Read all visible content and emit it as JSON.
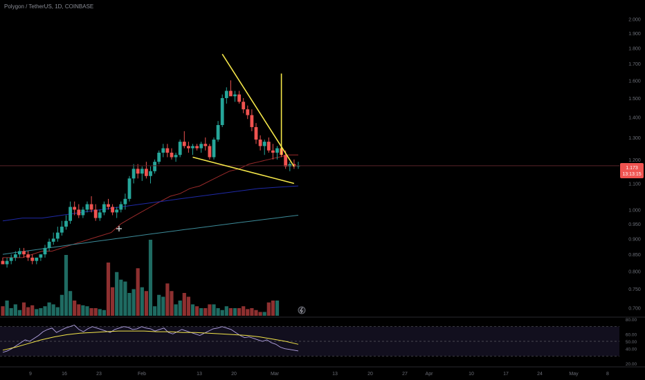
{
  "header": {
    "title": "Polygon / TetherUS, 1D, COINBASE"
  },
  "price_badge": {
    "price": "1.173",
    "countdown": "13:13:15"
  },
  "colors": {
    "up": "#26a69a",
    "down": "#ef5350",
    "up_dim": "#1f6b62",
    "down_dim": "#8e3030",
    "pattern": "#f5e74a",
    "ma_fast": "#9c2b2b",
    "ma_mid": "#1f2aa8",
    "ma_slow": "#3d8c9a",
    "rsi": "#b6a6e6",
    "rsi_ma": "#f5e74a",
    "badge": "#ef5350"
  },
  "icons": {
    "chart_marker": "lightning-icon",
    "event_marker": "plus-icon"
  },
  "chart_data": {
    "type": "candlestick",
    "title": "Polygon / TetherUS, 1D, COINBASE",
    "ylim": [
      0.68,
      2.1
    ],
    "y_ticks": [
      "2.000",
      "1.900",
      "1.800",
      "1.700",
      "1.600",
      "1.500",
      "1.400",
      "1.300",
      "1.200",
      "1.100",
      "1.000",
      "0.950",
      "0.900",
      "0.850",
      "0.800",
      "0.750",
      "0.700"
    ],
    "x_ticks": [
      "9",
      "16",
      "23",
      "Feb",
      "13",
      "20",
      "Mar",
      "13",
      "20",
      "27",
      "Apr",
      "10",
      "17",
      "24",
      "May",
      "8"
    ],
    "candles_ohlc": [
      [
        0.83,
        0.84,
        0.82,
        0.82
      ],
      [
        0.82,
        0.84,
        0.81,
        0.83
      ],
      [
        0.83,
        0.85,
        0.82,
        0.84
      ],
      [
        0.84,
        0.86,
        0.83,
        0.85
      ],
      [
        0.85,
        0.87,
        0.84,
        0.86
      ],
      [
        0.86,
        0.87,
        0.84,
        0.85
      ],
      [
        0.85,
        0.86,
        0.83,
        0.84
      ],
      [
        0.84,
        0.85,
        0.82,
        0.83
      ],
      [
        0.83,
        0.84,
        0.82,
        0.84
      ],
      [
        0.84,
        0.85,
        0.83,
        0.85
      ],
      [
        0.85,
        0.88,
        0.84,
        0.87
      ],
      [
        0.87,
        0.9,
        0.86,
        0.89
      ],
      [
        0.89,
        0.92,
        0.88,
        0.9
      ],
      [
        0.9,
        0.94,
        0.89,
        0.92
      ],
      [
        0.92,
        0.96,
        0.91,
        0.94
      ],
      [
        0.94,
        0.98,
        0.93,
        0.96
      ],
      [
        0.96,
        1.03,
        0.95,
        1.01
      ],
      [
        1.01,
        1.03,
        0.98,
        1.0
      ],
      [
        1.0,
        1.02,
        0.97,
        0.98
      ],
      [
        0.98,
        1.01,
        0.97,
        1.0
      ],
      [
        1.0,
        1.03,
        0.99,
        1.02
      ],
      [
        1.02,
        1.05,
        0.99,
        1.0
      ],
      [
        1.0,
        1.02,
        0.96,
        0.97
      ],
      [
        0.97,
        1.0,
        0.96,
        0.99
      ],
      [
        0.99,
        1.03,
        0.98,
        1.02
      ],
      [
        1.02,
        1.04,
        1.0,
        1.01
      ],
      [
        1.01,
        1.02,
        0.98,
        0.99
      ],
      [
        0.99,
        1.01,
        0.97,
        1.0
      ],
      [
        1.0,
        1.03,
        0.99,
        1.02
      ],
      [
        1.02,
        1.06,
        1.0,
        1.04
      ],
      [
        1.04,
        1.13,
        1.03,
        1.12
      ],
      [
        1.12,
        1.18,
        1.1,
        1.16
      ],
      [
        1.16,
        1.18,
        1.12,
        1.14
      ],
      [
        1.14,
        1.17,
        1.11,
        1.16
      ],
      [
        1.16,
        1.19,
        1.12,
        1.13
      ],
      [
        1.13,
        1.17,
        1.1,
        1.15
      ],
      [
        1.15,
        1.2,
        1.14,
        1.19
      ],
      [
        1.19,
        1.24,
        1.18,
        1.23
      ],
      [
        1.23,
        1.27,
        1.21,
        1.25
      ],
      [
        1.25,
        1.27,
        1.21,
        1.23
      ],
      [
        1.23,
        1.25,
        1.2,
        1.21
      ],
      [
        1.21,
        1.23,
        1.19,
        1.22
      ],
      [
        1.22,
        1.29,
        1.21,
        1.28
      ],
      [
        1.28,
        1.33,
        1.25,
        1.26
      ],
      [
        1.26,
        1.28,
        1.23,
        1.25
      ],
      [
        1.25,
        1.27,
        1.22,
        1.26
      ],
      [
        1.26,
        1.27,
        1.24,
        1.25
      ],
      [
        1.25,
        1.28,
        1.23,
        1.27
      ],
      [
        1.27,
        1.3,
        1.24,
        1.26
      ],
      [
        1.26,
        1.27,
        1.2,
        1.21
      ],
      [
        1.21,
        1.3,
        1.2,
        1.29
      ],
      [
        1.29,
        1.38,
        1.28,
        1.36
      ],
      [
        1.36,
        1.52,
        1.35,
        1.5
      ],
      [
        1.5,
        1.56,
        1.47,
        1.54
      ],
      [
        1.54,
        1.6,
        1.52,
        1.51
      ],
      [
        1.51,
        1.54,
        1.48,
        1.52
      ],
      [
        1.52,
        1.54,
        1.47,
        1.48
      ],
      [
        1.48,
        1.5,
        1.42,
        1.44
      ],
      [
        1.44,
        1.46,
        1.39,
        1.41
      ],
      [
        1.41,
        1.44,
        1.33,
        1.35
      ],
      [
        1.35,
        1.37,
        1.27,
        1.29
      ],
      [
        1.29,
        1.31,
        1.24,
        1.26
      ],
      [
        1.26,
        1.29,
        1.22,
        1.28
      ],
      [
        1.28,
        1.3,
        1.23,
        1.24
      ],
      [
        1.24,
        1.27,
        1.2,
        1.23
      ],
      [
        1.23,
        1.26,
        1.2,
        1.25
      ],
      [
        1.25,
        1.27,
        1.21,
        1.22
      ],
      [
        1.22,
        1.24,
        1.16,
        1.17
      ],
      [
        1.17,
        1.19,
        1.15,
        1.18
      ],
      [
        1.18,
        1.2,
        1.16,
        1.17
      ],
      [
        1.17,
        1.19,
        1.16,
        1.173
      ]
    ],
    "volume": [
      10,
      16,
      8,
      12,
      6,
      14,
      9,
      11,
      7,
      8,
      10,
      14,
      12,
      9,
      22,
      64,
      26,
      16,
      12,
      11,
      10,
      8,
      8,
      7,
      6,
      56,
      30,
      46,
      38,
      36,
      24,
      28,
      50,
      30,
      26,
      80,
      10,
      22,
      20,
      34,
      26,
      12,
      16,
      24,
      20,
      12,
      10,
      8,
      8,
      12,
      12,
      8,
      6,
      10,
      8,
      8,
      8,
      10,
      7,
      8,
      6,
      4,
      4,
      14,
      16,
      16
    ],
    "ma_fast": [
      0.84,
      0.84,
      0.84,
      0.85,
      0.86,
      0.86,
      0.87,
      0.88,
      0.89,
      0.9,
      0.91,
      0.92,
      0.95,
      0.97,
      0.99,
      1.01,
      1.03,
      1.05,
      1.06,
      1.08,
      1.09,
      1.11,
      1.13,
      1.15,
      1.16,
      1.18,
      1.19,
      1.2,
      1.21,
      1.22,
      1.22
    ],
    "ma_mid": [
      0.96,
      0.97,
      0.97,
      0.98,
      0.99,
      1.0,
      1.01,
      1.02,
      1.03,
      1.04,
      1.05,
      1.06,
      1.07,
      1.08,
      1.085,
      1.09
    ],
    "ma_slow": [
      0.85,
      0.855,
      0.86,
      0.865,
      0.87,
      0.875,
      0.88,
      0.885,
      0.89,
      0.895,
      0.9,
      0.905,
      0.91,
      0.915,
      0.92,
      0.925,
      0.93,
      0.935,
      0.94,
      0.945,
      0.95,
      0.955,
      0.96,
      0.965,
      0.97,
      0.975,
      0.98
    ],
    "pattern_lines": [
      {
        "from": [
          52,
          1.76
        ],
        "to": [
          69,
          1.17
        ]
      },
      {
        "from": [
          45,
          1.21
        ],
        "to": [
          69,
          1.1
        ]
      },
      {
        "from": [
          66,
          1.64
        ],
        "to": [
          66,
          1.22
        ]
      }
    ],
    "current_price": 1.173,
    "rsi": {
      "ylim": [
        20,
        80
      ],
      "ticks": [
        "80.00",
        "60.00",
        "50.00",
        "40.00",
        "20.00"
      ],
      "levels": [
        70,
        50,
        30
      ],
      "values": [
        35,
        37,
        40,
        44,
        48,
        52,
        50,
        54,
        58,
        63,
        66,
        68,
        62,
        65,
        68,
        70,
        72,
        66,
        63,
        67,
        70,
        68,
        66,
        64,
        62,
        66,
        68,
        70,
        69,
        66,
        67,
        70,
        68,
        67,
        64,
        66,
        68,
        62,
        60,
        63,
        66,
        64,
        62,
        60,
        58,
        61,
        64,
        67,
        68,
        70,
        68,
        66,
        62,
        58,
        55,
        56,
        54,
        52,
        50,
        52,
        48,
        46,
        42,
        40,
        39,
        38,
        37
      ],
      "ma_values": [
        38,
        42,
        47,
        52,
        56,
        59,
        61,
        62,
        63,
        64,
        64,
        64,
        63,
        63,
        62,
        62,
        61,
        60,
        59,
        58,
        56,
        53,
        50,
        46
      ]
    }
  }
}
